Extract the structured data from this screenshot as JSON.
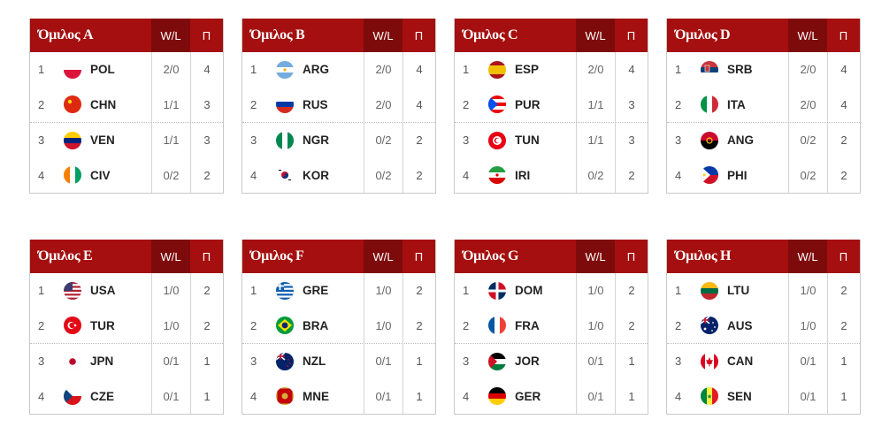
{
  "columns": {
    "wl": "W/L",
    "pts": "Π"
  },
  "groups": [
    {
      "title": "Όμιλος A",
      "rows": [
        {
          "pos": "1",
          "code": "POL",
          "wl": "2/0",
          "pts": "4",
          "flag": "pol"
        },
        {
          "pos": "2",
          "code": "CHN",
          "wl": "1/1",
          "pts": "3",
          "flag": "chn"
        },
        {
          "pos": "3",
          "code": "VEN",
          "wl": "1/1",
          "pts": "3",
          "flag": "ven"
        },
        {
          "pos": "4",
          "code": "CIV",
          "wl": "0/2",
          "pts": "2",
          "flag": "civ"
        }
      ]
    },
    {
      "title": "Όμιλος B",
      "rows": [
        {
          "pos": "1",
          "code": "ARG",
          "wl": "2/0",
          "pts": "4",
          "flag": "arg"
        },
        {
          "pos": "2",
          "code": "RUS",
          "wl": "2/0",
          "pts": "4",
          "flag": "rus"
        },
        {
          "pos": "3",
          "code": "NGR",
          "wl": "0/2",
          "pts": "2",
          "flag": "ngr"
        },
        {
          "pos": "4",
          "code": "KOR",
          "wl": "0/2",
          "pts": "2",
          "flag": "kor"
        }
      ]
    },
    {
      "title": "Όμιλος C",
      "rows": [
        {
          "pos": "1",
          "code": "ESP",
          "wl": "2/0",
          "pts": "4",
          "flag": "esp"
        },
        {
          "pos": "2",
          "code": "PUR",
          "wl": "1/1",
          "pts": "3",
          "flag": "pur"
        },
        {
          "pos": "3",
          "code": "TUN",
          "wl": "1/1",
          "pts": "3",
          "flag": "tun"
        },
        {
          "pos": "4",
          "code": "IRI",
          "wl": "0/2",
          "pts": "2",
          "flag": "iri"
        }
      ]
    },
    {
      "title": "Όμιλος D",
      "rows": [
        {
          "pos": "1",
          "code": "SRB",
          "wl": "2/0",
          "pts": "4",
          "flag": "srb"
        },
        {
          "pos": "2",
          "code": "ITA",
          "wl": "2/0",
          "pts": "4",
          "flag": "ita"
        },
        {
          "pos": "3",
          "code": "ANG",
          "wl": "0/2",
          "pts": "2",
          "flag": "ang"
        },
        {
          "pos": "4",
          "code": "PHI",
          "wl": "0/2",
          "pts": "2",
          "flag": "phi"
        }
      ]
    },
    {
      "title": "Όμιλος E",
      "rows": [
        {
          "pos": "1",
          "code": "USA",
          "wl": "1/0",
          "pts": "2",
          "flag": "usa"
        },
        {
          "pos": "2",
          "code": "TUR",
          "wl": "1/0",
          "pts": "2",
          "flag": "tur"
        },
        {
          "pos": "3",
          "code": "JPN",
          "wl": "0/1",
          "pts": "1",
          "flag": "jpn"
        },
        {
          "pos": "4",
          "code": "CZE",
          "wl": "0/1",
          "pts": "1",
          "flag": "cze"
        }
      ]
    },
    {
      "title": "Όμιλος F",
      "rows": [
        {
          "pos": "1",
          "code": "GRE",
          "wl": "1/0",
          "pts": "2",
          "flag": "gre"
        },
        {
          "pos": "2",
          "code": "BRA",
          "wl": "1/0",
          "pts": "2",
          "flag": "bra"
        },
        {
          "pos": "3",
          "code": "NZL",
          "wl": "0/1",
          "pts": "1",
          "flag": "nzl"
        },
        {
          "pos": "4",
          "code": "MNE",
          "wl": "0/1",
          "pts": "1",
          "flag": "mne"
        }
      ]
    },
    {
      "title": "Όμιλος G",
      "rows": [
        {
          "pos": "1",
          "code": "DOM",
          "wl": "1/0",
          "pts": "2",
          "flag": "dom"
        },
        {
          "pos": "2",
          "code": "FRA",
          "wl": "1/0",
          "pts": "2",
          "flag": "fra"
        },
        {
          "pos": "3",
          "code": "JOR",
          "wl": "0/1",
          "pts": "1",
          "flag": "jor"
        },
        {
          "pos": "4",
          "code": "GER",
          "wl": "0/1",
          "pts": "1",
          "flag": "ger"
        }
      ]
    },
    {
      "title": "Όμιλος H",
      "rows": [
        {
          "pos": "1",
          "code": "LTU",
          "wl": "1/0",
          "pts": "2",
          "flag": "ltu"
        },
        {
          "pos": "2",
          "code": "AUS",
          "wl": "1/0",
          "pts": "2",
          "flag": "aus"
        },
        {
          "pos": "3",
          "code": "CAN",
          "wl": "0/1",
          "pts": "1",
          "flag": "can"
        },
        {
          "pos": "4",
          "code": "SEN",
          "wl": "0/1",
          "pts": "1",
          "flag": "sen"
        }
      ]
    }
  ]
}
